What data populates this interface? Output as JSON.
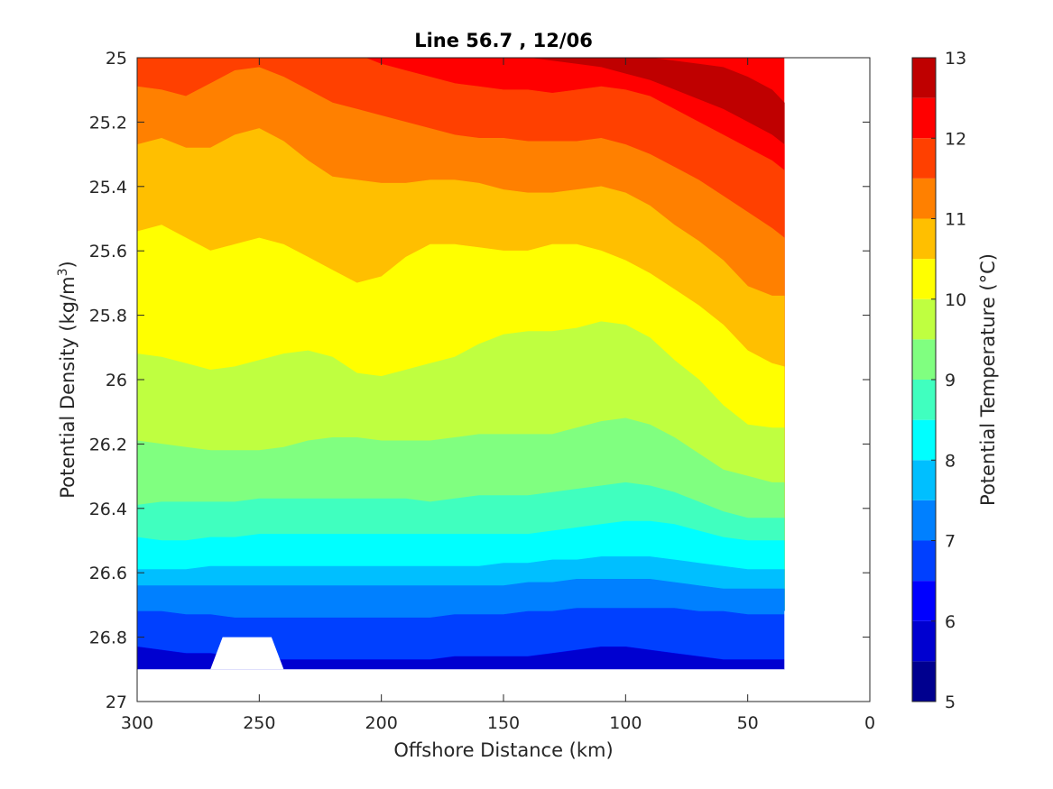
{
  "chart_data": {
    "type": "contour",
    "title": "Line 56.7 , 12/06",
    "xlabel": "Offshore Distance (km)",
    "ylabel_main": "Potential Density (kg/m",
    "ylabel_sup": "3",
    "ylabel_close": ")",
    "colorbar_label": "Potential Temperature (°C)",
    "x_axis": {
      "range": [
        300,
        0
      ],
      "reversed": true,
      "ticks": [
        300,
        250,
        200,
        150,
        100,
        50,
        0
      ],
      "tick_labels": [
        "300",
        "250",
        "200",
        "150",
        "100",
        "50",
        "0"
      ]
    },
    "y_axis": {
      "range": [
        25,
        27
      ],
      "reversed": true,
      "ticks": [
        25,
        25.2,
        25.4,
        25.6,
        25.8,
        26,
        26.2,
        26.4,
        26.6,
        26.8,
        27
      ],
      "tick_labels": [
        "25",
        "25.2",
        "25.4",
        "25.6",
        "25.8",
        "26",
        "26.2",
        "26.4",
        "26.6",
        "26.8",
        "27"
      ]
    },
    "colorbar": {
      "range": [
        5,
        13
      ],
      "ticks": [
        5,
        6,
        7,
        8,
        9,
        10,
        11,
        12,
        13
      ],
      "tick_labels": [
        "5",
        "6",
        "7",
        "8",
        "9",
        "10",
        "11",
        "12",
        "13"
      ],
      "levels": [
        5,
        5.5,
        6,
        6.5,
        7,
        7.5,
        8,
        8.5,
        9,
        9.5,
        10,
        10.5,
        11,
        11.5,
        12,
        12.5,
        13
      ],
      "colors": [
        "#00008F",
        "#0000D0",
        "#0000FF",
        "#0040FF",
        "#0080FF",
        "#00BFFF",
        "#00FFFF",
        "#40FFBF",
        "#80FF80",
        "#BFFF40",
        "#FFFF00",
        "#FFBF00",
        "#FF8000",
        "#FF4000",
        "#FF0000",
        "#BF0000"
      ]
    },
    "contour_x": [
      300,
      290,
      280,
      270,
      260,
      250,
      240,
      230,
      220,
      210,
      200,
      190,
      180,
      170,
      160,
      150,
      140,
      130,
      120,
      110,
      100,
      90,
      80,
      70,
      60,
      50,
      40,
      35
    ],
    "isopycnals": [
      {
        "temp": 12.5,
        "y": [
          24.93,
          24.92,
          24.91,
          24.9,
          24.9,
          24.9,
          24.9,
          24.91,
          24.92,
          24.94,
          24.95,
          24.96,
          24.96,
          24.96,
          24.95,
          24.94,
          24.94,
          24.95,
          24.97,
          24.99,
          25.0,
          25.0,
          25.01,
          25.02,
          25.03,
          25.06,
          25.1,
          25.14
        ]
      },
      {
        "temp": 12.0,
        "y": [
          24.9,
          24.89,
          24.88,
          24.88,
          24.88,
          24.89,
          24.9,
          24.9,
          24.92,
          24.96,
          25.0,
          25.0,
          25.0,
          25.0,
          25.0,
          25.0,
          25.0,
          25.01,
          25.02,
          25.03,
          25.05,
          25.07,
          25.1,
          25.13,
          25.16,
          25.2,
          25.24,
          25.27
        ]
      },
      {
        "temp": 11.5,
        "y": [
          24.98,
          24.98,
          24.97,
          24.96,
          24.94,
          24.93,
          24.94,
          24.95,
          24.97,
          24.99,
          25.02,
          25.04,
          25.06,
          25.08,
          25.09,
          25.1,
          25.1,
          25.11,
          25.1,
          25.09,
          25.1,
          25.12,
          25.16,
          25.2,
          25.24,
          25.28,
          25.32,
          25.35
        ]
      },
      {
        "temp": 11.0,
        "y": [
          25.09,
          25.1,
          25.12,
          25.08,
          25.04,
          25.03,
          25.06,
          25.1,
          25.14,
          25.16,
          25.18,
          25.2,
          25.22,
          25.24,
          25.25,
          25.25,
          25.26,
          25.26,
          25.26,
          25.25,
          25.27,
          25.3,
          25.34,
          25.38,
          25.43,
          25.48,
          25.53,
          25.56
        ]
      },
      {
        "temp": 10.5,
        "y": [
          25.27,
          25.25,
          25.28,
          25.28,
          25.24,
          25.22,
          25.26,
          25.32,
          25.37,
          25.38,
          25.39,
          25.39,
          25.38,
          25.38,
          25.39,
          25.41,
          25.42,
          25.42,
          25.41,
          25.4,
          25.42,
          25.46,
          25.52,
          25.57,
          25.63,
          25.71,
          25.74,
          25.74
        ]
      },
      {
        "temp": 10.0,
        "y": [
          25.54,
          25.52,
          25.56,
          25.6,
          25.58,
          25.56,
          25.58,
          25.62,
          25.66,
          25.7,
          25.68,
          25.62,
          25.58,
          25.58,
          25.59,
          25.6,
          25.6,
          25.58,
          25.58,
          25.6,
          25.63,
          25.67,
          25.72,
          25.77,
          25.83,
          25.91,
          25.95,
          25.96
        ]
      },
      {
        "temp": 9.5,
        "y": [
          25.92,
          25.93,
          25.95,
          25.97,
          25.96,
          25.94,
          25.92,
          25.91,
          25.93,
          25.98,
          25.99,
          25.97,
          25.95,
          25.93,
          25.89,
          25.86,
          25.85,
          25.85,
          25.84,
          25.82,
          25.83,
          25.87,
          25.94,
          26.0,
          26.08,
          26.14,
          26.15,
          26.15
        ]
      },
      {
        "temp": 9.0,
        "y": [
          26.19,
          26.2,
          26.21,
          26.22,
          26.22,
          26.22,
          26.21,
          26.19,
          26.18,
          26.18,
          26.19,
          26.19,
          26.19,
          26.18,
          26.17,
          26.17,
          26.17,
          26.17,
          26.15,
          26.13,
          26.12,
          26.14,
          26.18,
          26.23,
          26.28,
          26.3,
          26.32,
          26.32
        ]
      },
      {
        "temp": 8.5,
        "y": [
          26.39,
          26.38,
          26.38,
          26.38,
          26.38,
          26.37,
          26.37,
          26.37,
          26.37,
          26.37,
          26.37,
          26.37,
          26.38,
          26.37,
          26.36,
          26.36,
          26.36,
          26.35,
          26.34,
          26.33,
          26.32,
          26.33,
          26.35,
          26.38,
          26.41,
          26.43,
          26.43,
          26.43
        ]
      },
      {
        "temp": 8.0,
        "y": [
          26.49,
          26.5,
          26.5,
          26.49,
          26.49,
          26.48,
          26.48,
          26.48,
          26.48,
          26.48,
          26.48,
          26.48,
          26.48,
          26.48,
          26.48,
          26.48,
          26.48,
          26.47,
          26.46,
          26.45,
          26.44,
          26.44,
          26.45,
          26.47,
          26.49,
          26.5,
          26.5,
          26.5
        ]
      },
      {
        "temp": 7.5,
        "y": [
          26.59,
          26.59,
          26.59,
          26.58,
          26.58,
          26.58,
          26.58,
          26.58,
          26.58,
          26.58,
          26.58,
          26.58,
          26.58,
          26.58,
          26.58,
          26.57,
          26.57,
          26.56,
          26.56,
          26.55,
          26.55,
          26.55,
          26.56,
          26.57,
          26.58,
          26.59,
          26.59,
          26.59
        ]
      },
      {
        "temp": 7.0,
        "y": [
          26.64,
          26.64,
          26.64,
          26.64,
          26.64,
          26.64,
          26.64,
          26.64,
          26.64,
          26.64,
          26.64,
          26.64,
          26.64,
          26.64,
          26.64,
          26.64,
          26.63,
          26.63,
          26.62,
          26.62,
          26.62,
          26.62,
          26.63,
          26.64,
          26.65,
          26.65,
          26.65,
          26.65
        ]
      },
      {
        "temp": 6.5,
        "y": [
          26.72,
          26.72,
          26.73,
          26.73,
          26.74,
          26.74,
          26.74,
          26.74,
          26.74,
          26.74,
          26.74,
          26.74,
          26.74,
          26.73,
          26.73,
          26.73,
          26.72,
          26.72,
          26.71,
          26.71,
          26.71,
          26.71,
          26.71,
          26.72,
          26.72,
          26.73,
          26.73,
          26.73
        ]
      },
      {
        "temp": 6.0,
        "y": [
          26.83,
          26.84,
          26.85,
          26.85,
          26.86,
          26.87,
          26.87,
          26.87,
          26.87,
          26.87,
          26.87,
          26.87,
          26.87,
          26.86,
          26.86,
          26.86,
          26.86,
          26.85,
          26.84,
          26.83,
          26.83,
          26.84,
          26.85,
          26.86,
          26.87,
          26.87,
          26.87,
          26.87
        ]
      }
    ],
    "bottom_density": 26.9,
    "bottom_fill_temp": 5.75,
    "top_fill_temp": 12.25,
    "blank_regions": [
      {
        "name": "upper-right-blank",
        "points": [
          [
            30,
            25.0
          ],
          [
            0,
            25.0
          ],
          [
            0,
            25.2
          ],
          [
            15,
            25.2
          ],
          [
            20,
            25.1
          ],
          [
            25,
            25.1
          ]
        ]
      },
      {
        "name": "right-edge-blank",
        "points": [
          [
            0,
            25.4
          ],
          [
            0,
            27.0
          ],
          [
            35,
            27.0
          ],
          [
            35,
            26.72
          ],
          [
            30,
            26.66
          ],
          [
            30,
            26.4
          ],
          [
            25,
            26.3
          ],
          [
            25,
            26.13
          ],
          [
            20,
            26.1
          ],
          [
            15,
            26.1
          ],
          [
            10,
            26.0
          ],
          [
            10,
            25.9
          ],
          [
            5,
            25.82
          ],
          [
            5,
            25.55
          ]
        ]
      },
      {
        "name": "bottom-notch-blank",
        "points": [
          [
            270,
            26.9
          ],
          [
            265,
            26.8
          ],
          [
            245,
            26.8
          ],
          [
            240,
            26.9
          ]
        ]
      },
      {
        "name": "below-data-blank",
        "points": [
          [
            300,
            26.9
          ],
          [
            35,
            26.9
          ],
          [
            35,
            27.0
          ],
          [
            300,
            27.0
          ]
        ]
      }
    ]
  }
}
